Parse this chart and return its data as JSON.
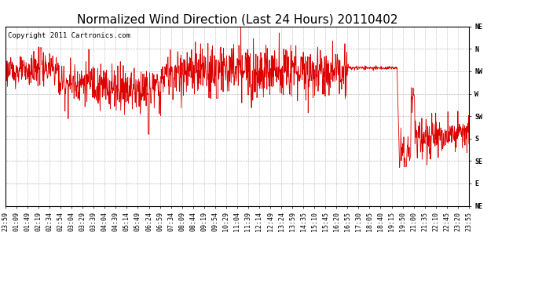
{
  "title": "Normalized Wind Direction (Last 24 Hours) 20110402",
  "copyright_text": "Copyright 2011 Cartronics.com",
  "line_color": "#dd0000",
  "background_color": "#ffffff",
  "plot_bg_color": "#ffffff",
  "grid_color": "#bbbbbb",
  "ytick_labels": [
    "NE",
    "N",
    "NW",
    "W",
    "SW",
    "S",
    "SE",
    "E",
    "NE"
  ],
  "ytick_values": [
    8,
    7,
    6,
    5,
    4,
    3,
    2,
    1,
    0
  ],
  "xtick_labels": [
    "23:59",
    "01:09",
    "01:49",
    "02:19",
    "02:34",
    "02:54",
    "03:04",
    "03:29",
    "03:39",
    "04:04",
    "04:39",
    "05:14",
    "05:49",
    "06:24",
    "06:59",
    "07:34",
    "08:09",
    "08:44",
    "09:19",
    "09:54",
    "10:29",
    "11:04",
    "11:39",
    "12:14",
    "12:49",
    "13:24",
    "13:59",
    "14:35",
    "15:10",
    "15:45",
    "16:20",
    "16:55",
    "17:30",
    "18:05",
    "18:40",
    "19:15",
    "19:50",
    "21:00",
    "21:35",
    "22:10",
    "22:45",
    "23:20",
    "23:55"
  ],
  "ylim": [
    0,
    8
  ],
  "title_fontsize": 11,
  "copyright_fontsize": 6.5,
  "tick_fontsize": 6,
  "line_width": 0.6
}
